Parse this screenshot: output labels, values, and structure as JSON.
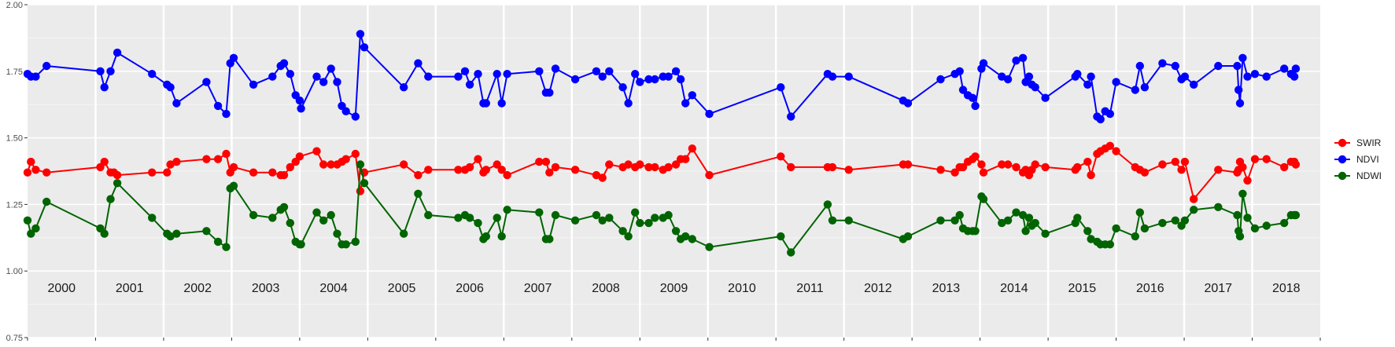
{
  "chart_data": {
    "type": "line",
    "x_axis": "time (years)",
    "xlim": [
      2000.0,
      2019.0
    ],
    "ylim": [
      0.75,
      2.0
    ],
    "y_ticks": [
      "0.75",
      "1.00",
      "1.25",
      "1.50",
      "1.75",
      "2.00"
    ],
    "y_tick_values": [
      0.75,
      1.0,
      1.25,
      1.5,
      1.75,
      2.0
    ],
    "year_labels": [
      "2000",
      "2001",
      "2002",
      "2003",
      "2004",
      "2005",
      "2006",
      "2007",
      "2008",
      "2009",
      "2010",
      "2011",
      "2012",
      "2013",
      "2014",
      "2015",
      "2016",
      "2017",
      "2018"
    ],
    "grid": true,
    "background": "#ebebeb",
    "legend_position": "right",
    "series": [
      {
        "name": "SWIR",
        "color": "#ff0000",
        "x": [
          2000.0,
          2000.05,
          2000.12,
          2000.28,
          2001.07,
          2001.13,
          2001.22,
          2001.27,
          2001.32,
          2001.83,
          2002.05,
          2002.1,
          2002.19,
          2002.63,
          2002.8,
          2002.92,
          2002.98,
          2003.03,
          2003.32,
          2003.6,
          2003.72,
          2003.77,
          2003.86,
          2003.94,
          2004.0,
          2004.25,
          2004.35,
          2004.46,
          2004.55,
          2004.62,
          2004.68,
          2004.82,
          2004.89,
          2004.95,
          2005.53,
          2005.74,
          2005.89,
          2006.33,
          2006.43,
          2006.5,
          2006.62,
          2006.7,
          2006.74,
          2006.9,
          2006.97,
          2007.05,
          2007.52,
          2007.62,
          2007.67,
          2007.76,
          2008.05,
          2008.36,
          2008.45,
          2008.55,
          2008.75,
          2008.83,
          2008.93,
          2009.0,
          2009.13,
          2009.22,
          2009.34,
          2009.42,
          2009.53,
          2009.6,
          2009.67,
          2009.77,
          2010.02,
          2011.07,
          2011.22,
          2011.76,
          2011.83,
          2012.07,
          2012.87,
          2012.94,
          2013.42,
          2013.63,
          2013.7,
          2013.75,
          2013.82,
          2013.89,
          2013.93,
          2014.02,
          2014.05,
          2014.32,
          2014.41,
          2014.53,
          2014.63,
          2014.67,
          2014.72,
          2014.76,
          2014.81,
          2014.96,
          2015.4,
          2015.43,
          2015.58,
          2015.63,
          2015.72,
          2015.77,
          2015.84,
          2015.91,
          2016.0,
          2016.28,
          2016.35,
          2016.42,
          2016.68,
          2016.87,
          2016.96,
          2017.01,
          2017.14,
          2017.5,
          2017.78,
          2017.8,
          2017.82,
          2017.86,
          2017.93,
          2018.04,
          2018.21,
          2018.47,
          2018.57,
          2018.62,
          2018.64
        ],
        "y": [
          1.37,
          1.41,
          1.38,
          1.37,
          1.39,
          1.41,
          1.37,
          1.37,
          1.36,
          1.37,
          1.37,
          1.4,
          1.41,
          1.42,
          1.42,
          1.44,
          1.37,
          1.39,
          1.37,
          1.37,
          1.36,
          1.36,
          1.39,
          1.41,
          1.43,
          1.45,
          1.4,
          1.4,
          1.4,
          1.41,
          1.42,
          1.44,
          1.3,
          1.37,
          1.4,
          1.36,
          1.38,
          1.38,
          1.38,
          1.39,
          1.42,
          1.37,
          1.38,
          1.4,
          1.38,
          1.36,
          1.41,
          1.41,
          1.37,
          1.39,
          1.38,
          1.36,
          1.35,
          1.4,
          1.39,
          1.4,
          1.39,
          1.4,
          1.39,
          1.39,
          1.38,
          1.39,
          1.4,
          1.42,
          1.42,
          1.46,
          1.36,
          1.43,
          1.39,
          1.39,
          1.39,
          1.38,
          1.4,
          1.4,
          1.38,
          1.37,
          1.39,
          1.39,
          1.41,
          1.42,
          1.43,
          1.4,
          1.37,
          1.4,
          1.4,
          1.39,
          1.37,
          1.38,
          1.36,
          1.38,
          1.4,
          1.39,
          1.38,
          1.39,
          1.41,
          1.36,
          1.44,
          1.45,
          1.46,
          1.47,
          1.45,
          1.39,
          1.38,
          1.37,
          1.4,
          1.41,
          1.38,
          1.41,
          1.27,
          1.38,
          1.37,
          1.38,
          1.41,
          1.39,
          1.34,
          1.42,
          1.42,
          1.39,
          1.41,
          1.41,
          1.4
        ]
      },
      {
        "name": "NDVI",
        "color": "#0000ff",
        "x": [
          2000.0,
          2000.05,
          2000.12,
          2000.28,
          2001.07,
          2001.13,
          2001.22,
          2001.32,
          2001.83,
          2002.05,
          2002.1,
          2002.19,
          2002.63,
          2002.8,
          2002.92,
          2002.98,
          2003.03,
          2003.32,
          2003.6,
          2003.72,
          2003.77,
          2003.86,
          2003.94,
          2004.0,
          2004.02,
          2004.25,
          2004.35,
          2004.46,
          2004.55,
          2004.62,
          2004.68,
          2004.82,
          2004.89,
          2004.95,
          2005.53,
          2005.74,
          2005.89,
          2006.33,
          2006.43,
          2006.5,
          2006.62,
          2006.7,
          2006.74,
          2006.9,
          2006.97,
          2007.05,
          2007.52,
          2007.62,
          2007.67,
          2007.76,
          2008.05,
          2008.36,
          2008.45,
          2008.55,
          2008.75,
          2008.83,
          2008.93,
          2009.0,
          2009.13,
          2009.22,
          2009.34,
          2009.42,
          2009.53,
          2009.6,
          2009.67,
          2009.77,
          2010.02,
          2011.07,
          2011.22,
          2011.76,
          2011.83,
          2012.07,
          2012.87,
          2012.94,
          2013.42,
          2013.63,
          2013.7,
          2013.75,
          2013.82,
          2013.89,
          2013.93,
          2014.02,
          2014.05,
          2014.32,
          2014.41,
          2014.53,
          2014.63,
          2014.67,
          2014.72,
          2014.76,
          2014.81,
          2014.96,
          2015.4,
          2015.43,
          2015.58,
          2015.63,
          2015.72,
          2015.77,
          2015.84,
          2015.91,
          2016.0,
          2016.28,
          2016.35,
          2016.42,
          2016.68,
          2016.87,
          2016.96,
          2017.01,
          2017.14,
          2017.5,
          2017.78,
          2017.8,
          2017.82,
          2017.86,
          2017.93,
          2018.04,
          2018.21,
          2018.47,
          2018.57,
          2018.62,
          2018.64
        ],
        "y": [
          1.74,
          1.73,
          1.73,
          1.77,
          1.75,
          1.69,
          1.75,
          1.82,
          1.74,
          1.7,
          1.69,
          1.63,
          1.71,
          1.62,
          1.59,
          1.78,
          1.8,
          1.7,
          1.73,
          1.77,
          1.78,
          1.74,
          1.66,
          1.64,
          1.61,
          1.73,
          1.71,
          1.76,
          1.71,
          1.62,
          1.6,
          1.58,
          1.89,
          1.84,
          1.69,
          1.78,
          1.73,
          1.73,
          1.75,
          1.7,
          1.74,
          1.63,
          1.63,
          1.74,
          1.63,
          1.74,
          1.75,
          1.67,
          1.67,
          1.76,
          1.72,
          1.75,
          1.73,
          1.75,
          1.69,
          1.63,
          1.74,
          1.71,
          1.72,
          1.72,
          1.73,
          1.73,
          1.75,
          1.72,
          1.63,
          1.66,
          1.59,
          1.69,
          1.58,
          1.74,
          1.73,
          1.73,
          1.64,
          1.63,
          1.72,
          1.74,
          1.75,
          1.68,
          1.66,
          1.65,
          1.62,
          1.76,
          1.78,
          1.73,
          1.72,
          1.79,
          1.8,
          1.71,
          1.73,
          1.7,
          1.69,
          1.65,
          1.73,
          1.74,
          1.7,
          1.73,
          1.58,
          1.57,
          1.6,
          1.59,
          1.71,
          1.68,
          1.77,
          1.69,
          1.78,
          1.77,
          1.72,
          1.73,
          1.7,
          1.77,
          1.77,
          1.68,
          1.63,
          1.8,
          1.73,
          1.74,
          1.73,
          1.76,
          1.74,
          1.73,
          1.76
        ]
      },
      {
        "name": "NDWI",
        "color": "#006400",
        "x": [
          2000.0,
          2000.05,
          2000.12,
          2000.28,
          2001.07,
          2001.13,
          2001.22,
          2001.32,
          2001.83,
          2002.05,
          2002.1,
          2002.19,
          2002.63,
          2002.8,
          2002.92,
          2002.98,
          2003.03,
          2003.32,
          2003.6,
          2003.72,
          2003.77,
          2003.86,
          2003.94,
          2004.0,
          2004.02,
          2004.25,
          2004.35,
          2004.46,
          2004.55,
          2004.62,
          2004.68,
          2004.82,
          2004.89,
          2004.95,
          2005.53,
          2005.74,
          2005.89,
          2006.33,
          2006.43,
          2006.5,
          2006.62,
          2006.7,
          2006.74,
          2006.9,
          2006.97,
          2007.05,
          2007.52,
          2007.62,
          2007.67,
          2007.76,
          2008.05,
          2008.36,
          2008.45,
          2008.55,
          2008.75,
          2008.83,
          2008.93,
          2009.0,
          2009.13,
          2009.22,
          2009.34,
          2009.42,
          2009.53,
          2009.6,
          2009.67,
          2009.77,
          2010.02,
          2011.07,
          2011.22,
          2011.76,
          2011.83,
          2012.07,
          2012.87,
          2012.94,
          2013.42,
          2013.63,
          2013.7,
          2013.75,
          2013.82,
          2013.89,
          2013.93,
          2014.02,
          2014.05,
          2014.32,
          2014.41,
          2014.53,
          2014.63,
          2014.67,
          2014.72,
          2014.76,
          2014.81,
          2014.96,
          2015.4,
          2015.43,
          2015.58,
          2015.63,
          2015.72,
          2015.77,
          2015.84,
          2015.91,
          2016.0,
          2016.28,
          2016.35,
          2016.42,
          2016.68,
          2016.87,
          2016.96,
          2017.01,
          2017.14,
          2017.5,
          2017.78,
          2017.8,
          2017.82,
          2017.86,
          2017.93,
          2018.04,
          2018.21,
          2018.47,
          2018.57,
          2018.62,
          2018.64
        ],
        "y": [
          1.19,
          1.14,
          1.16,
          1.26,
          1.16,
          1.14,
          1.27,
          1.33,
          1.2,
          1.14,
          1.13,
          1.14,
          1.15,
          1.11,
          1.09,
          1.31,
          1.32,
          1.21,
          1.2,
          1.23,
          1.24,
          1.18,
          1.11,
          1.1,
          1.1,
          1.22,
          1.19,
          1.21,
          1.14,
          1.1,
          1.1,
          1.11,
          1.4,
          1.33,
          1.14,
          1.29,
          1.21,
          1.2,
          1.21,
          1.2,
          1.18,
          1.12,
          1.13,
          1.2,
          1.13,
          1.23,
          1.22,
          1.12,
          1.12,
          1.21,
          1.19,
          1.21,
          1.19,
          1.2,
          1.15,
          1.13,
          1.22,
          1.18,
          1.18,
          1.2,
          1.2,
          1.21,
          1.15,
          1.12,
          1.13,
          1.12,
          1.09,
          1.13,
          1.07,
          1.25,
          1.19,
          1.19,
          1.12,
          1.13,
          1.19,
          1.19,
          1.21,
          1.16,
          1.15,
          1.15,
          1.15,
          1.28,
          1.27,
          1.18,
          1.19,
          1.22,
          1.21,
          1.15,
          1.2,
          1.17,
          1.18,
          1.14,
          1.18,
          1.2,
          1.15,
          1.12,
          1.11,
          1.1,
          1.1,
          1.1,
          1.16,
          1.13,
          1.22,
          1.16,
          1.18,
          1.19,
          1.17,
          1.19,
          1.23,
          1.24,
          1.21,
          1.15,
          1.13,
          1.29,
          1.2,
          1.16,
          1.17,
          1.18,
          1.21,
          1.21,
          1.21
        ]
      }
    ]
  }
}
